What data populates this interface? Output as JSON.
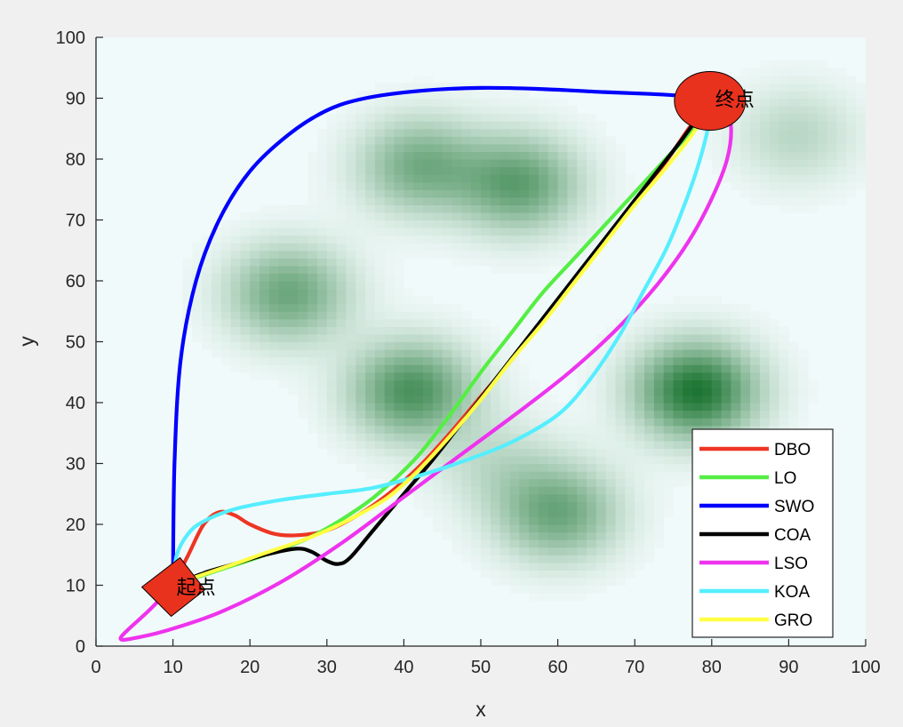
{
  "chart_data": {
    "type": "line",
    "xlabel": "x",
    "ylabel": "y",
    "xlim": [
      0,
      100
    ],
    "ylim": [
      0,
      100
    ],
    "xticks": [
      0,
      10,
      20,
      30,
      40,
      50,
      60,
      70,
      80,
      90,
      100
    ],
    "yticks": [
      0,
      10,
      20,
      30,
      40,
      50,
      60,
      70,
      80,
      90,
      100
    ],
    "grid": false,
    "legend_position": "bottom-right",
    "start": {
      "x": 10,
      "y": 10,
      "label": "起点",
      "marker": "diamond",
      "color": "#e8321e"
    },
    "goal": {
      "x": 80,
      "y": 90,
      "label": "终点",
      "marker": "circle",
      "color": "#e8321e"
    },
    "terrain": {
      "colormap": "green",
      "peaks": [
        {
          "x": 42,
          "y": 79,
          "height": 0.55
        },
        {
          "x": 55,
          "y": 76,
          "height": 0.65
        },
        {
          "x": 25,
          "y": 58,
          "height": 0.6
        },
        {
          "x": 41,
          "y": 42,
          "height": 0.75
        },
        {
          "x": 78,
          "y": 42,
          "height": 0.95
        },
        {
          "x": 60,
          "y": 22,
          "height": 0.6
        },
        {
          "x": 91,
          "y": 84,
          "height": 0.25
        },
        {
          "x": 52,
          "y": 30,
          "height": 0.2
        }
      ]
    },
    "series": [
      {
        "name": "DBO",
        "color": "#ee3524",
        "x": [
          10,
          12,
          14,
          16,
          18,
          20,
          23,
          26,
          30,
          34,
          38,
          42,
          46,
          50,
          54,
          58,
          62,
          66,
          70,
          74,
          77,
          80
        ],
        "y": [
          10,
          15,
          20,
          22,
          21.5,
          20,
          18.5,
          18.2,
          19,
          21.5,
          25,
          29.5,
          35,
          41,
          47,
          53.5,
          60,
          66.5,
          73,
          79.5,
          85,
          90
        ]
      },
      {
        "name": "LO",
        "color": "#55ee44",
        "x": [
          10,
          16,
          22,
          28,
          34,
          38,
          42,
          46,
          50,
          54,
          58,
          62,
          66,
          70,
          74,
          78,
          80
        ],
        "y": [
          10,
          12.5,
          15,
          18,
          22.5,
          26.5,
          31.5,
          38,
          45,
          51.5,
          58,
          63.5,
          69,
          74.5,
          80,
          85.5,
          90
        ]
      },
      {
        "name": "SWO",
        "color": "#0000ff",
        "x": [
          10,
          10.2,
          11,
          13,
          16,
          20,
          25,
          30,
          35,
          42,
          50,
          58,
          66,
          72,
          76,
          80
        ],
        "y": [
          10,
          30,
          47,
          60,
          70,
          78,
          84,
          88,
          90,
          91.2,
          91.7,
          91.5,
          91,
          90.7,
          90.4,
          90
        ]
      },
      {
        "name": "COA",
        "color": "#000000",
        "x": [
          10,
          14,
          18,
          22,
          26,
          28,
          30,
          31.5,
          33,
          36,
          40,
          44,
          48,
          52,
          56,
          60,
          64,
          68,
          72,
          76,
          80
        ],
        "y": [
          10,
          12,
          13.5,
          15,
          16,
          15.5,
          14,
          13.5,
          14.5,
          19,
          25,
          31,
          37.5,
          44,
          50.5,
          57,
          63.5,
          70,
          76.5,
          83,
          90
        ]
      },
      {
        "name": "LSO",
        "color": "#ee33ee",
        "x": [
          10,
          7,
          4,
          3.2,
          4.5,
          9,
          16,
          24,
          32,
          40,
          48,
          56,
          62,
          68,
          73,
          77,
          80,
          82,
          82.5,
          81.5,
          80
        ],
        "y": [
          10,
          6,
          2.5,
          1.2,
          1.2,
          2.5,
          5.5,
          10.5,
          17,
          24.5,
          32,
          39.5,
          45.5,
          52.5,
          59.5,
          66.5,
          73.5,
          80,
          85.5,
          88.5,
          90
        ]
      },
      {
        "name": "KOA",
        "color": "#55eeff",
        "x": [
          10,
          10.5,
          12,
          14,
          18,
          24,
          30,
          36,
          42,
          48,
          54,
          60,
          64,
          68,
          71,
          74,
          76,
          78,
          79.5,
          80
        ],
        "y": [
          10,
          15,
          18.5,
          20.5,
          22.5,
          24,
          25,
          26,
          28,
          30.5,
          33.5,
          38,
          43.5,
          51,
          58,
          65,
          71,
          78,
          85,
          90
        ]
      },
      {
        "name": "GRO",
        "color": "#ffff44",
        "x": [
          10,
          14,
          18,
          22,
          26,
          30,
          34,
          38,
          42,
          46,
          50,
          54,
          58,
          62,
          66,
          70,
          74,
          78,
          80
        ],
        "y": [
          10,
          11.8,
          13.5,
          15.3,
          17,
          19,
          21.5,
          24.5,
          29,
          34.5,
          40.5,
          47,
          53,
          59.5,
          66,
          72.5,
          78.5,
          85,
          90
        ]
      }
    ]
  }
}
